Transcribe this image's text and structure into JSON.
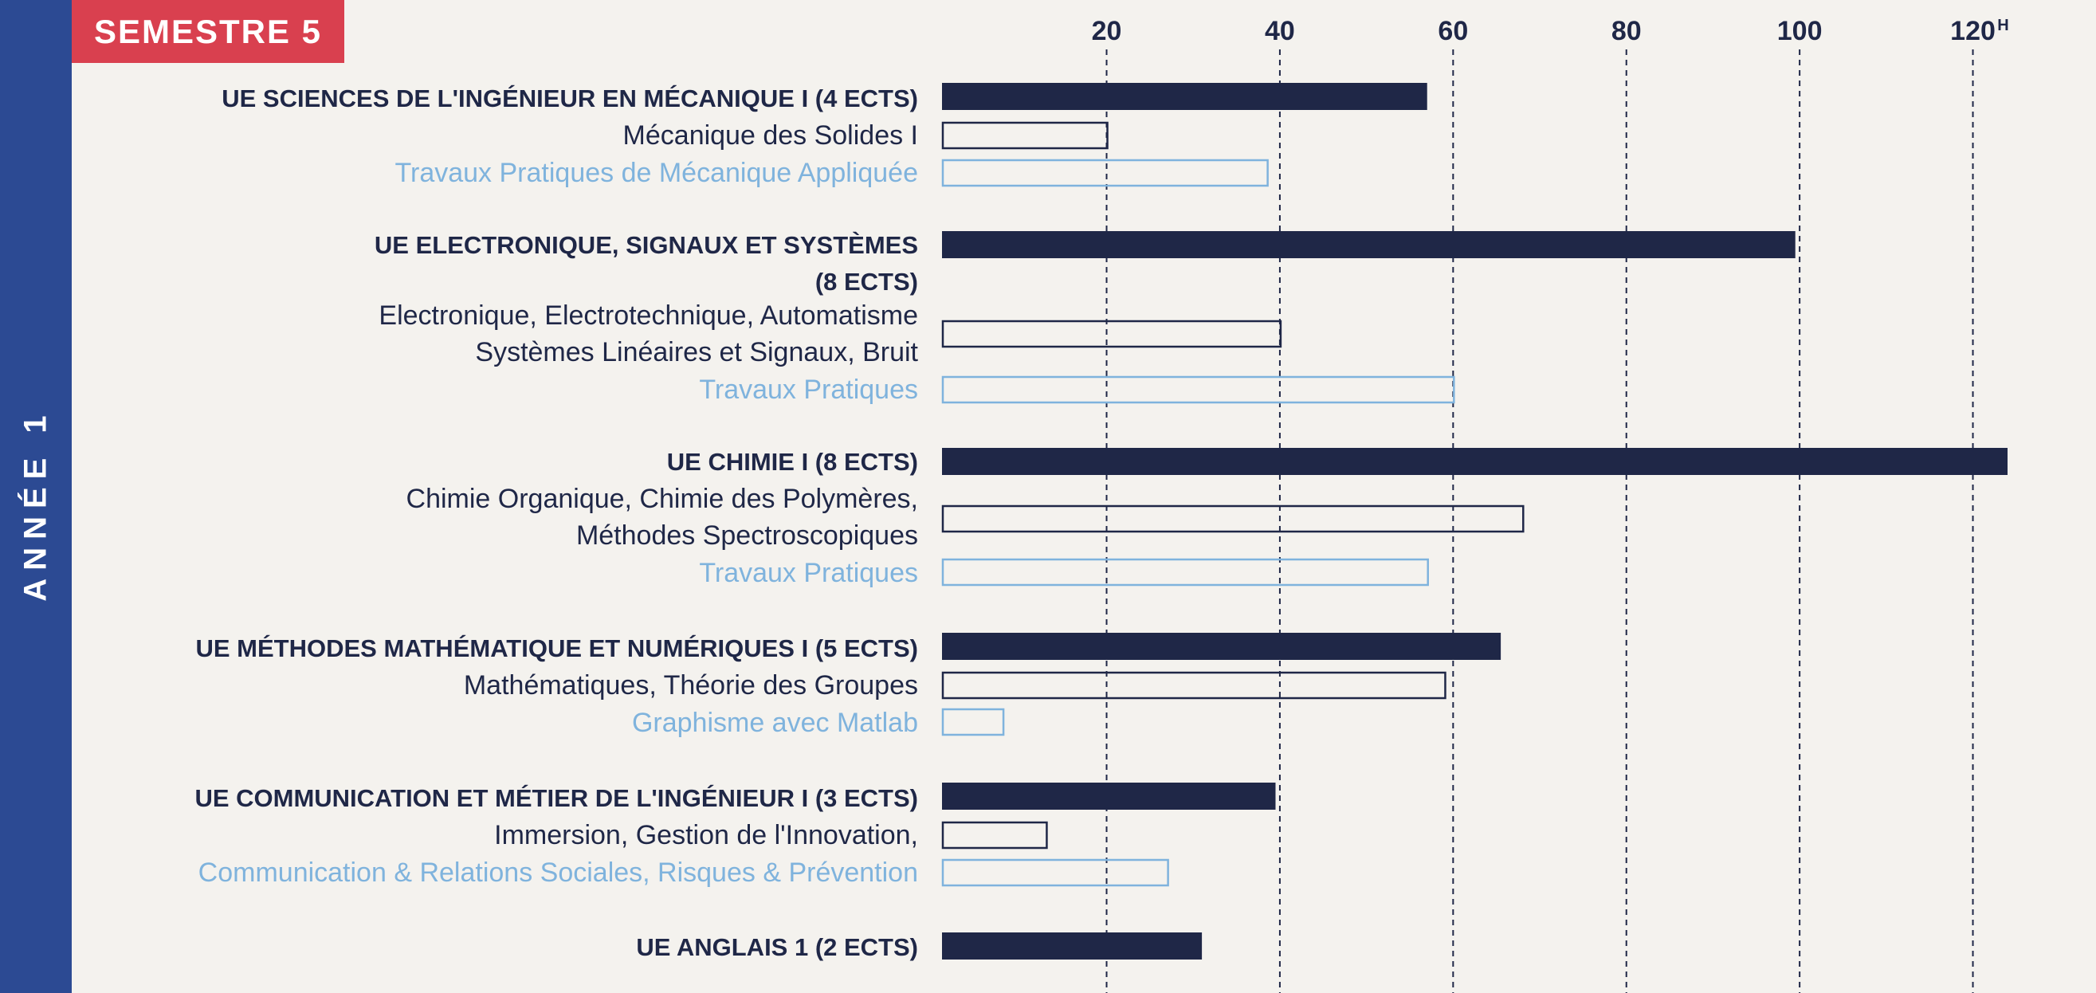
{
  "sidebar": {
    "label": "ANNÉE 1"
  },
  "badge": {
    "label": "SEMESTRE 5"
  },
  "colors": {
    "ue": "#1f2747",
    "course": "#1f2747",
    "tp": "#7fb3dd",
    "background": "#f4f2ee",
    "sidebar": "#2c4a93",
    "badge": "#d9404f"
  },
  "chart_data": {
    "type": "bar",
    "orientation": "horizontal",
    "x_ticks": [
      20,
      40,
      60,
      80,
      100,
      120
    ],
    "x_unit": "H",
    "xlim": [
      1,
      128
    ],
    "grid": "vertical dashed",
    "rows": [
      {
        "label_lines": [
          "UE SCIENCES DE L'INGÉNIEUR EN MÉCANIQUE I (4 ECTS)"
        ],
        "kind": "ue",
        "value": 57
      },
      {
        "label_lines": [
          "Mécanique des Solides I"
        ],
        "kind": "course",
        "value": 20
      },
      {
        "label_lines": [
          "Travaux Pratiques de Mécanique Appliquée"
        ],
        "kind": "tp",
        "value": 38.5
      },
      {
        "label_lines": [
          "UE ELECTRONIQUE, SIGNAUX ET SYSTÈMES",
          "(8 ECTS)"
        ],
        "kind": "ue",
        "value": 99.5
      },
      {
        "label_lines": [
          "Electronique, Electrotechnique, Automatisme",
          "Systèmes Linéaires et Signaux, Bruit"
        ],
        "kind": "course",
        "value": 40
      },
      {
        "label_lines": [
          "Travaux Pratiques"
        ],
        "kind": "tp",
        "value": 60
      },
      {
        "label_lines": [
          "UE CHIMIE I (8 ECTS)"
        ],
        "kind": "ue",
        "value": 124
      },
      {
        "label_lines": [
          "Chimie Organique, Chimie des Polymères,",
          "Méthodes Spectroscopiques"
        ],
        "kind": "course",
        "value": 68
      },
      {
        "label_lines": [
          "Travaux Pratiques"
        ],
        "kind": "tp",
        "value": 57
      },
      {
        "label_lines": [
          "UE MÉTHODES MATHÉMATIQUE ET NUMÉRIQUES I (5 ECTS)"
        ],
        "kind": "ue",
        "value": 65.5
      },
      {
        "label_lines": [
          "Mathématiques, Théorie des Groupes"
        ],
        "kind": "course",
        "value": 59
      },
      {
        "label_lines": [
          "Graphisme avec Matlab"
        ],
        "kind": "tp",
        "value": 8
      },
      {
        "label_lines": [
          "UE COMMUNICATION ET MÉTIER DE L'INGÉNIEUR I (3 ECTS)"
        ],
        "kind": "ue",
        "value": 39.5
      },
      {
        "label_lines": [
          "Immersion, Gestion de l'Innovation,"
        ],
        "kind": "course",
        "value": 13
      },
      {
        "label_lines": [
          "Communication & Relations Sociales, Risques & Prévention"
        ],
        "kind": "tp",
        "value": 27
      },
      {
        "label_lines": [
          "UE ANGLAIS 1 (2 ECTS)"
        ],
        "kind": "ue",
        "value": 31
      }
    ]
  }
}
